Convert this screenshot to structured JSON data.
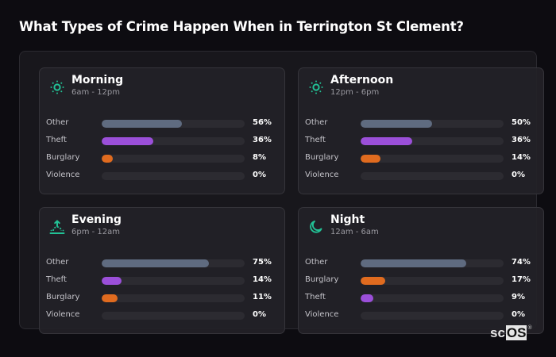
{
  "title": "What Types of Crime Happen When in Terrington St Clement?",
  "colors": {
    "Other": "#5f6b80",
    "Theft": "#9b4fd9",
    "Burglary": "#e06b1f",
    "Violence": "#2c2b31",
    "icon_accent": "#22c195"
  },
  "cards": [
    {
      "name": "Morning",
      "range": "6am - 12pm",
      "icon": "sun-icon",
      "rows": [
        {
          "label": "Other",
          "value": 56,
          "pct": "56%"
        },
        {
          "label": "Theft",
          "value": 36,
          "pct": "36%"
        },
        {
          "label": "Burglary",
          "value": 8,
          "pct": "8%"
        },
        {
          "label": "Violence",
          "value": 0,
          "pct": "0%"
        }
      ]
    },
    {
      "name": "Afternoon",
      "range": "12pm - 6pm",
      "icon": "sun-icon",
      "rows": [
        {
          "label": "Other",
          "value": 50,
          "pct": "50%"
        },
        {
          "label": "Theft",
          "value": 36,
          "pct": "36%"
        },
        {
          "label": "Burglary",
          "value": 14,
          "pct": "14%"
        },
        {
          "label": "Violence",
          "value": 0,
          "pct": "0%"
        }
      ]
    },
    {
      "name": "Evening",
      "range": "6pm - 12am",
      "icon": "sunset-icon",
      "rows": [
        {
          "label": "Other",
          "value": 75,
          "pct": "75%"
        },
        {
          "label": "Theft",
          "value": 14,
          "pct": "14%"
        },
        {
          "label": "Burglary",
          "value": 11,
          "pct": "11%"
        },
        {
          "label": "Violence",
          "value": 0,
          "pct": "0%"
        }
      ]
    },
    {
      "name": "Night",
      "range": "12am - 6am",
      "icon": "moon-icon",
      "rows": [
        {
          "label": "Other",
          "value": 74,
          "pct": "74%"
        },
        {
          "label": "Burglary",
          "value": 17,
          "pct": "17%"
        },
        {
          "label": "Theft",
          "value": 9,
          "pct": "9%"
        },
        {
          "label": "Violence",
          "value": 0,
          "pct": "0%"
        }
      ]
    }
  ],
  "logo": {
    "sc": "sc",
    "os": "OS",
    "reg": "®"
  },
  "chart_data": {
    "type": "bar",
    "title": "What Types of Crime Happen When in Terrington St Clement?",
    "orientation": "horizontal",
    "panels": [
      {
        "title": "Morning",
        "subtitle": "6am - 12pm",
        "categories": [
          "Other",
          "Theft",
          "Burglary",
          "Violence"
        ],
        "values": [
          56,
          36,
          8,
          0
        ]
      },
      {
        "title": "Afternoon",
        "subtitle": "12pm - 6pm",
        "categories": [
          "Other",
          "Theft",
          "Burglary",
          "Violence"
        ],
        "values": [
          50,
          36,
          14,
          0
        ]
      },
      {
        "title": "Evening",
        "subtitle": "6pm - 12am",
        "categories": [
          "Other",
          "Theft",
          "Burglary",
          "Violence"
        ],
        "values": [
          75,
          14,
          11,
          0
        ]
      },
      {
        "title": "Night",
        "subtitle": "12am - 6am",
        "categories": [
          "Other",
          "Burglary",
          "Theft",
          "Violence"
        ],
        "values": [
          74,
          17,
          9,
          0
        ]
      }
    ],
    "unit": "%",
    "xlim": [
      0,
      100
    ],
    "grid": false,
    "legend": "none"
  }
}
